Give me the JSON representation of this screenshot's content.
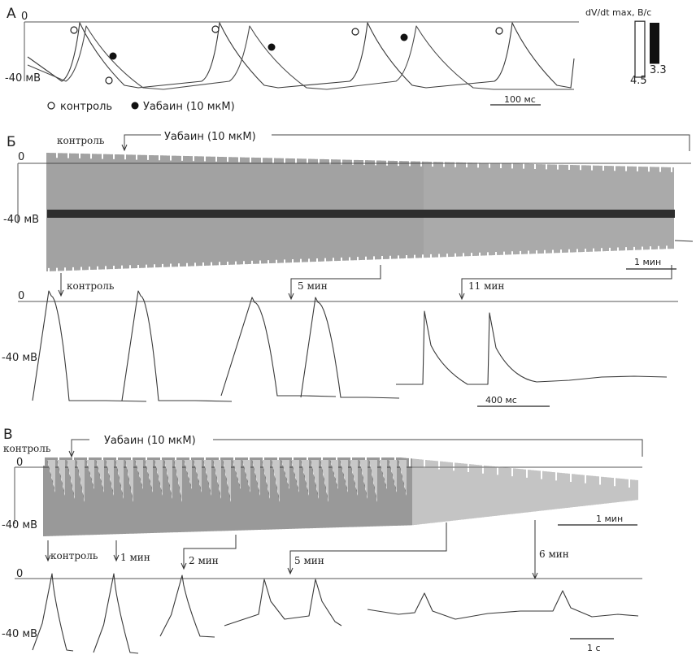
{
  "panels": {
    "A": {
      "letter": "А",
      "zero_label": "0",
      "v_label": "-40 мВ",
      "dvdt_label": "dV/dt max, В/с",
      "bar_control_value": 4.5,
      "bar_ouabain_value": 3.3,
      "bar_control_text": "4.5",
      "bar_ouabain_text": "3.3",
      "legend_control": "контроль",
      "legend_ouabain": "Уабаин (10 мкМ)",
      "scale_label": "100 мс"
    },
    "B": {
      "letter": "Б",
      "zero_label": "0",
      "v_label": "-40 мВ",
      "control_label": "контроль",
      "drug_label": "Уабаин (10 мкМ)",
      "scale_label": "1 мин",
      "inset_labels": [
        "контроль",
        "5 мин",
        "11 мин"
      ],
      "inset_zero": "0",
      "inset_v": "-40 мВ",
      "inset_scale": "400 мс"
    },
    "C": {
      "letter": "В",
      "zero_label": "0",
      "v_label": "-40 мВ",
      "control_label": "контроль",
      "drug_label": "Уабаин (10 мкМ)",
      "scale_label": "1 мин",
      "inset_labels": [
        "контроль",
        "1 мин",
        "2 мин",
        "5 мин",
        "6 мин"
      ],
      "inset_zero": "0",
      "inset_v": "-40 мВ",
      "inset_scale": "1 с"
    }
  },
  "chart_data": [
    {
      "type": "line",
      "panel": "А",
      "ylabel": "мВ",
      "series": [
        {
          "name": "контроль",
          "marker": "open-circle"
        },
        {
          "name": "Уабаин (10 мкМ)",
          "marker": "filled-circle"
        }
      ],
      "bar_inset": {
        "ylabel": "dV/dt max, В/с",
        "categories": [
          "контроль",
          "Уабаин (10 мкМ)"
        ],
        "values": [
          4.5,
          3.3
        ]
      }
    },
    {
      "type": "line",
      "panel": "Б",
      "annotations": [
        "контроль",
        "Уабаин (10 мкМ)",
        "5 мин",
        "11 мин"
      ]
    },
    {
      "type": "line",
      "panel": "В",
      "annotations": [
        "контроль",
        "Уабаин (10 мкМ)",
        "1 мин",
        "2 мин",
        "5 мин",
        "6 мин"
      ]
    }
  ],
  "colors": {
    "trace": "#3a3a3a",
    "dense": "#444444",
    "dense_light": "#9a9a9a",
    "axis": "#555555"
  }
}
